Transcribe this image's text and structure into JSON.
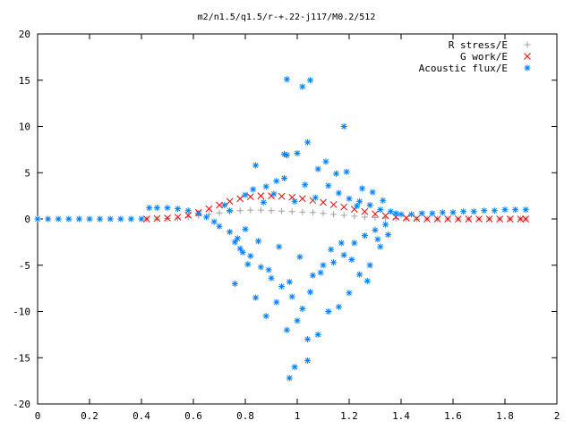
{
  "chart_data": {
    "type": "scatter",
    "title": "m2/n1.5/q1.5/r-+.22-j117/M0.2/512",
    "xlabel": "",
    "ylabel": "",
    "xlim": [
      0,
      2
    ],
    "ylim": [
      -20,
      20
    ],
    "xticks": [
      "0",
      "0.2",
      "0.4",
      "0.6",
      "0.8",
      "1",
      "1.2",
      "1.4",
      "1.6",
      "1.8",
      "2"
    ],
    "yticks": [
      "20",
      "15",
      "10",
      "5",
      "0",
      "-5",
      "-10",
      "-15",
      "-20"
    ],
    "grid": false,
    "legend_position": "top-right",
    "series": [
      {
        "name": "R stress/E",
        "marker": "+",
        "color": "#a0a0a0",
        "x": [
          0.42,
          0.46,
          0.5,
          0.54,
          0.58,
          0.62,
          0.66,
          0.7,
          0.74,
          0.78,
          0.82,
          0.86,
          0.9,
          0.94,
          0.98,
          1.02,
          1.06,
          1.1,
          1.14,
          1.18,
          1.22,
          1.26,
          1.3,
          1.34,
          1.38,
          1.42,
          1.46,
          1.5,
          1.54,
          1.58,
          1.62,
          1.66,
          1.7,
          1.74,
          1.78,
          1.82,
          1.86,
          1.88
        ],
        "y": [
          0.0,
          0.0,
          0.05,
          0.1,
          0.2,
          0.35,
          0.5,
          0.65,
          0.8,
          0.9,
          0.95,
          0.95,
          0.9,
          0.85,
          0.8,
          0.75,
          0.7,
          0.6,
          0.5,
          0.4,
          0.3,
          0.2,
          0.15,
          0.1,
          0.05,
          0.0,
          0.0,
          0.0,
          0.0,
          0.0,
          0.0,
          0.0,
          0.0,
          0.0,
          0.0,
          0.0,
          0.0,
          0.0
        ]
      },
      {
        "name": "G work/E",
        "marker": "x",
        "color": "#ff0000",
        "x": [
          0.42,
          0.46,
          0.5,
          0.54,
          0.58,
          0.62,
          0.66,
          0.7,
          0.74,
          0.78,
          0.82,
          0.86,
          0.9,
          0.94,
          0.98,
          1.02,
          1.06,
          1.1,
          1.14,
          1.18,
          1.22,
          1.26,
          1.3,
          1.34,
          1.38,
          1.42,
          1.46,
          1.5,
          1.54,
          1.58,
          1.62,
          1.66,
          1.7,
          1.74,
          1.78,
          1.82,
          1.86,
          1.88
        ],
        "y": [
          0.0,
          0.05,
          0.1,
          0.2,
          0.4,
          0.7,
          1.1,
          1.5,
          1.9,
          2.2,
          2.4,
          2.5,
          2.5,
          2.45,
          2.35,
          2.2,
          2.0,
          1.8,
          1.55,
          1.3,
          1.05,
          0.8,
          0.55,
          0.35,
          0.2,
          0.1,
          0.05,
          0.0,
          0.0,
          0.0,
          0.0,
          0.0,
          0.0,
          0.0,
          0.0,
          0.0,
          0.0,
          0.0
        ]
      },
      {
        "name": "Acoustic flux/E",
        "marker": "*",
        "color": "#0080ff",
        "x": [
          0.0,
          0.04,
          0.08,
          0.12,
          0.16,
          0.2,
          0.24,
          0.28,
          0.32,
          0.36,
          0.4,
          0.43,
          0.46,
          0.5,
          0.54,
          0.58,
          0.62,
          0.65,
          0.68,
          0.7,
          0.72,
          0.74,
          0.76,
          0.78,
          0.8,
          0.82,
          0.84,
          0.86,
          0.88,
          0.9,
          0.92,
          0.94,
          0.96,
          0.98,
          1.0,
          1.02,
          1.04,
          1.06,
          1.08,
          1.1,
          1.12,
          1.14,
          1.16,
          1.18,
          1.2,
          1.22,
          1.24,
          1.26,
          1.28,
          1.3,
          1.32,
          1.34,
          1.36,
          1.38,
          1.4,
          1.44,
          1.48,
          1.52,
          1.56,
          1.6,
          1.64,
          1.68,
          1.72,
          1.76,
          1.8,
          1.84,
          1.88,
          0.74,
          0.77,
          0.79,
          0.81,
          0.83,
          0.85,
          0.87,
          0.89,
          0.91,
          0.93,
          0.95,
          0.97,
          0.99,
          1.01,
          1.03,
          1.05,
          1.07,
          1.09,
          1.11,
          1.13,
          1.15,
          1.17,
          1.19,
          1.21,
          1.23,
          1.25,
          1.27,
          1.29,
          1.31,
          1.33,
          1.35,
          0.76,
          0.8,
          0.84,
          0.88,
          0.92,
          0.96,
          1.0,
          1.04,
          1.08,
          1.12,
          1.16,
          1.2,
          1.24,
          1.28,
          1.32,
          0.97,
          0.99,
          1.04,
          0.96,
          1.02,
          1.18,
          0.95,
          1.05
        ],
        "y": [
          0,
          0,
          0,
          0,
          0,
          0,
          0,
          0,
          0,
          0,
          0,
          1.2,
          1.2,
          1.2,
          1.1,
          0.9,
          0.6,
          0.2,
          -0.3,
          -0.8,
          1.5,
          -1.4,
          -2.5,
          -3.2,
          2.6,
          -4.0,
          5.8,
          -5.2,
          3.5,
          -6.4,
          4.1,
          -7.3,
          6.9,
          -8.4,
          7.1,
          -9.7,
          8.3,
          -6.1,
          5.4,
          -5.0,
          3.6,
          -4.7,
          2.8,
          -3.9,
          2.2,
          -2.6,
          1.9,
          -1.8,
          1.5,
          -1.2,
          1.0,
          -0.6,
          0.8,
          0.6,
          0.5,
          0.5,
          0.6,
          0.6,
          0.7,
          0.7,
          0.8,
          0.8,
          0.9,
          0.9,
          1.0,
          1.0,
          1.0,
          0.9,
          -2.1,
          -3.6,
          -4.9,
          3.2,
          -2.4,
          1.8,
          -5.5,
          2.7,
          -3.0,
          4.4,
          -6.8,
          1.9,
          -4.1,
          3.7,
          -7.9,
          2.3,
          -5.8,
          6.2,
          -3.3,
          4.9,
          -2.6,
          5.1,
          -4.4,
          1.4,
          3.3,
          -6.7,
          2.9,
          -2.2,
          2.0,
          -1.7,
          -7.0,
          -1.1,
          -8.5,
          -10.5,
          -9.0,
          -12.0,
          -11.0,
          -13.0,
          -12.5,
          -10.0,
          -9.5,
          -8.0,
          -6.0,
          -5.0,
          -3.0,
          -17.2,
          -16.0,
          -15.3,
          15.1,
          14.3,
          10.0,
          7.0,
          15.0
        ]
      }
    ]
  }
}
